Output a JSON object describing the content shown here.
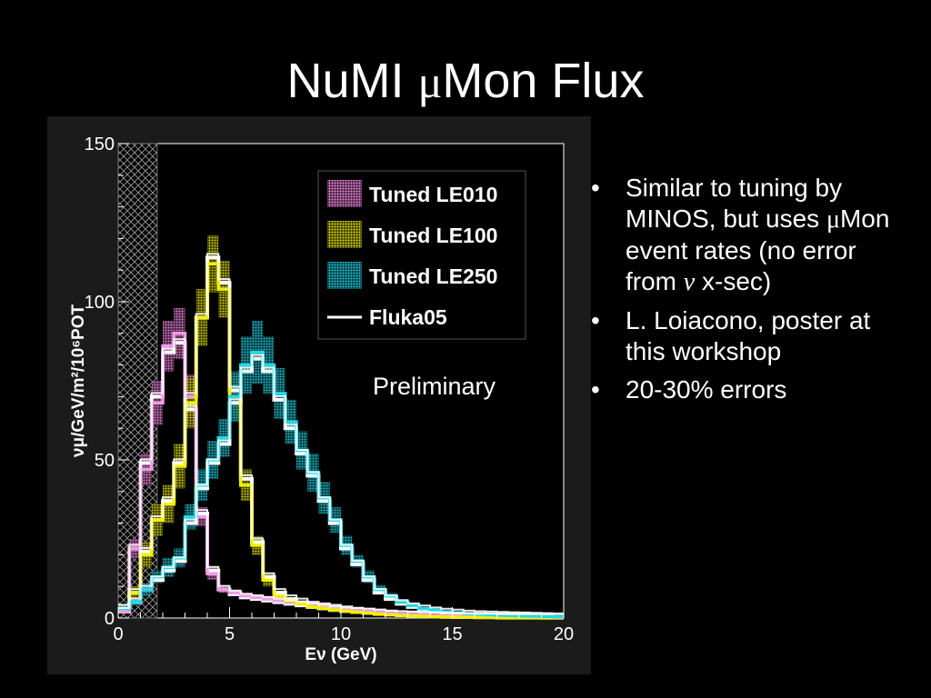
{
  "title": {
    "prefix": "NuMI ",
    "mu": "μ",
    "suffix": "Mon Flux"
  },
  "bullets": [
    {
      "parts": [
        "Similar to tuning by MINOS, but uses ",
        "μ",
        "Mon event rates (no error from ",
        "ν",
        " x-sec)"
      ]
    },
    {
      "parts": [
        "L. Loiacono, poster at this workshop"
      ]
    },
    {
      "parts": [
        "20-30% errors"
      ]
    }
  ],
  "chart_data": {
    "type": "line",
    "step": true,
    "xlabel": "Eν (GeV)",
    "ylabel": "νμ/GeV/m²/10⁶POT",
    "xlim": [
      0,
      20
    ],
    "ylim": [
      0,
      150
    ],
    "xticks": [
      0,
      5,
      10,
      15,
      20
    ],
    "yticks": [
      0,
      50,
      100,
      150
    ],
    "xtick_labels": [
      "0",
      "5",
      "10",
      "15",
      "20"
    ],
    "ytick_labels": [
      "0",
      "50",
      "100",
      "150"
    ],
    "bin_width": 0.5,
    "bin_starts": [
      0,
      0.5,
      1,
      1.5,
      2,
      2.5,
      3,
      3.5,
      4,
      4.5,
      5,
      5.5,
      6,
      6.5,
      7,
      7.5,
      8,
      8.5,
      9,
      9.5,
      10,
      10.5,
      11,
      11.5,
      12,
      12.5,
      13,
      13.5,
      14,
      14.5,
      15,
      15.5,
      16,
      16.5,
      17,
      17.5,
      18,
      18.5,
      19,
      19.5
    ],
    "shaded_region": [
      0,
      1.75
    ],
    "annotation": "Preliminary",
    "legend": {
      "placement": "top-right",
      "entries": [
        "Tuned LE010",
        "Tuned LE100",
        "Tuned LE250",
        "Fluka05"
      ]
    },
    "series": [
      {
        "name": "Tuned LE010",
        "color": "#f29ae6",
        "band": true,
        "values": [
          2,
          22,
          47,
          68,
          86,
          90,
          70,
          32,
          14,
          9,
          8,
          7,
          6.5,
          6,
          5.5,
          5,
          4.5,
          4,
          3.5,
          3,
          2.7,
          2.4,
          2.1,
          1.8,
          1.5,
          1.3,
          1.1,
          0.9,
          0.8,
          0.7,
          0.6,
          0.5,
          0.4,
          0.4,
          0.3,
          0.3,
          0.2,
          0.2,
          0.2,
          0.1
        ],
        "errors": [
          0.5,
          3,
          5,
          7,
          8,
          8,
          7,
          3,
          2,
          1,
          1,
          1,
          1,
          1,
          1,
          1,
          0.8,
          0.8,
          0.7,
          0.6,
          0.5,
          0.5,
          0.4,
          0.4,
          0.3,
          0.3,
          0.2,
          0.2,
          0.2,
          0.2,
          0.1,
          0.1,
          0.1,
          0.1,
          0.1,
          0.1,
          0.1,
          0.1,
          0.1,
          0.1
        ]
      },
      {
        "name": "Tuned LE100",
        "color": "#f0f000",
        "band": true,
        "values": [
          3,
          8,
          20,
          31,
          36,
          48,
          68,
          95,
          112,
          104,
          70,
          42,
          23,
          12,
          7,
          5.5,
          4.5,
          3.5,
          3,
          2.5,
          2.2,
          1.8,
          1.5,
          1.2,
          1,
          0.8,
          0.7,
          0.5,
          0.4,
          0.3,
          0.3,
          0.2,
          0.2,
          0.2,
          0.1,
          0.1,
          0.1,
          0.1,
          0.1,
          0.1
        ],
        "errors": [
          0.8,
          2,
          4,
          5,
          6,
          7,
          8,
          9,
          9,
          9,
          7,
          5,
          3,
          2,
          1,
          1,
          0.8,
          0.6,
          0.5,
          0.4,
          0.4,
          0.3,
          0.3,
          0.2,
          0.2,
          0.2,
          0.1,
          0.1,
          0.1,
          0.1,
          0.1,
          0.1,
          0.1,
          0.1,
          0.1,
          0.1,
          0.1,
          0.1,
          0.1,
          0.1
        ]
      },
      {
        "name": "Tuned LE250",
        "color": "#22d8e8",
        "band": true,
        "values": [
          3,
          5,
          9,
          13,
          16,
          19,
          32,
          42,
          50,
          57,
          70,
          80,
          84,
          80,
          71,
          62,
          53,
          46,
          38,
          31,
          23,
          18,
          13,
          9,
          7,
          5,
          4,
          3,
          2.5,
          2,
          1.7,
          1.4,
          1.2,
          1,
          0.9,
          0.8,
          0.7,
          0.6,
          0.5,
          0.4
        ],
        "errors": [
          0.8,
          1,
          2,
          2,
          3,
          3,
          4,
          5,
          6,
          6,
          8,
          9,
          10,
          9,
          8,
          7,
          6,
          6,
          5,
          4,
          3,
          2,
          2,
          1.5,
          1,
          1,
          0.8,
          0.6,
          0.5,
          0.4,
          0.3,
          0.3,
          0.2,
          0.2,
          0.2,
          0.2,
          0.1,
          0.1,
          0.1,
          0.1
        ]
      },
      {
        "name": "Fluka05",
        "color": "#ffffff",
        "band": false,
        "line_width": 4,
        "values": [
          2,
          22,
          49,
          70,
          84,
          87,
          66,
          33,
          15,
          9,
          7.5,
          6.5,
          6,
          5.5,
          5,
          4.5,
          4,
          3.5,
          3,
          2.5,
          2.2,
          2,
          1.8,
          1.5,
          1.2,
          1,
          0.9,
          0.8,
          0.7,
          0.6,
          0.5,
          0.4,
          0.4,
          0.3,
          0.3,
          0.2,
          0.2,
          0.2,
          0.1,
          0.1
        ]
      },
      {
        "name": "Fluka05",
        "color": "#ffffff",
        "band": false,
        "line_width": 4,
        "values": [
          3,
          8,
          21,
          31,
          37,
          49,
          70,
          95,
          114,
          106,
          72,
          44,
          24,
          13,
          8,
          6,
          5,
          4,
          3.5,
          3,
          2.5,
          2.1,
          1.8,
          1.5,
          1.2,
          1,
          0.8,
          0.6,
          0.5,
          0.4,
          0.3,
          0.3,
          0.2,
          0.2,
          0.1,
          0.1,
          0.1,
          0.1,
          0.1,
          0.1
        ]
      },
      {
        "name": "Fluka05",
        "color": "#ffffff",
        "band": false,
        "line_width": 4,
        "values": [
          3,
          5,
          9,
          12,
          15,
          18,
          30,
          41,
          49,
          55,
          68,
          78,
          82,
          78,
          69,
          60,
          52,
          45,
          37,
          30,
          22,
          17,
          12,
          8,
          6,
          4.5,
          3.5,
          2.8,
          2.2,
          1.8,
          1.5,
          1.2,
          1,
          0.9,
          0.8,
          0.7,
          0.6,
          0.5,
          0.4,
          0.3
        ]
      }
    ]
  }
}
